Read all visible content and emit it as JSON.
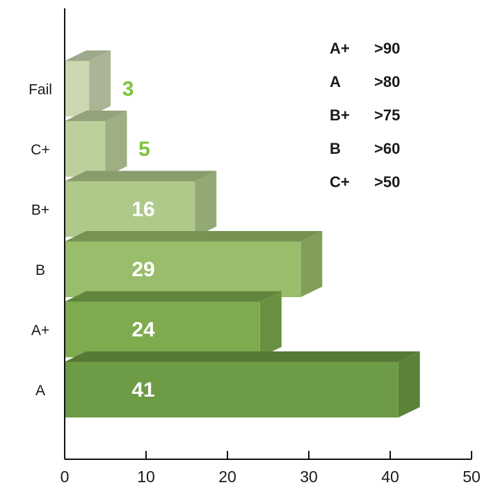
{
  "chart_data": {
    "type": "bar",
    "orientation": "horizontal",
    "categories": [
      "A",
      "A+",
      "B",
      "B+",
      "C+",
      "Fail"
    ],
    "values": [
      41,
      24,
      29,
      16,
      5,
      3
    ],
    "xlim": [
      0,
      50
    ],
    "xticks": [
      0,
      10,
      20,
      30,
      40,
      50
    ],
    "grid": false,
    "colors": [
      "#6e9b45",
      "#7eab4e",
      "#99bd6a",
      "#afc98a",
      "#bcd09c",
      "#cbd8b1"
    ],
    "value_label_colors": {
      "inside": "#ffffff",
      "outside": "#7dc23a"
    },
    "legend": {
      "position": "top-right",
      "entries": [
        {
          "grade": "A+",
          "threshold": ">90"
        },
        {
          "grade": "A",
          "threshold": ">80"
        },
        {
          "grade": "B+",
          "threshold": ">75"
        },
        {
          "grade": "B",
          "threshold": ">60"
        },
        {
          "grade": "C+",
          "threshold": ">50"
        }
      ]
    }
  }
}
